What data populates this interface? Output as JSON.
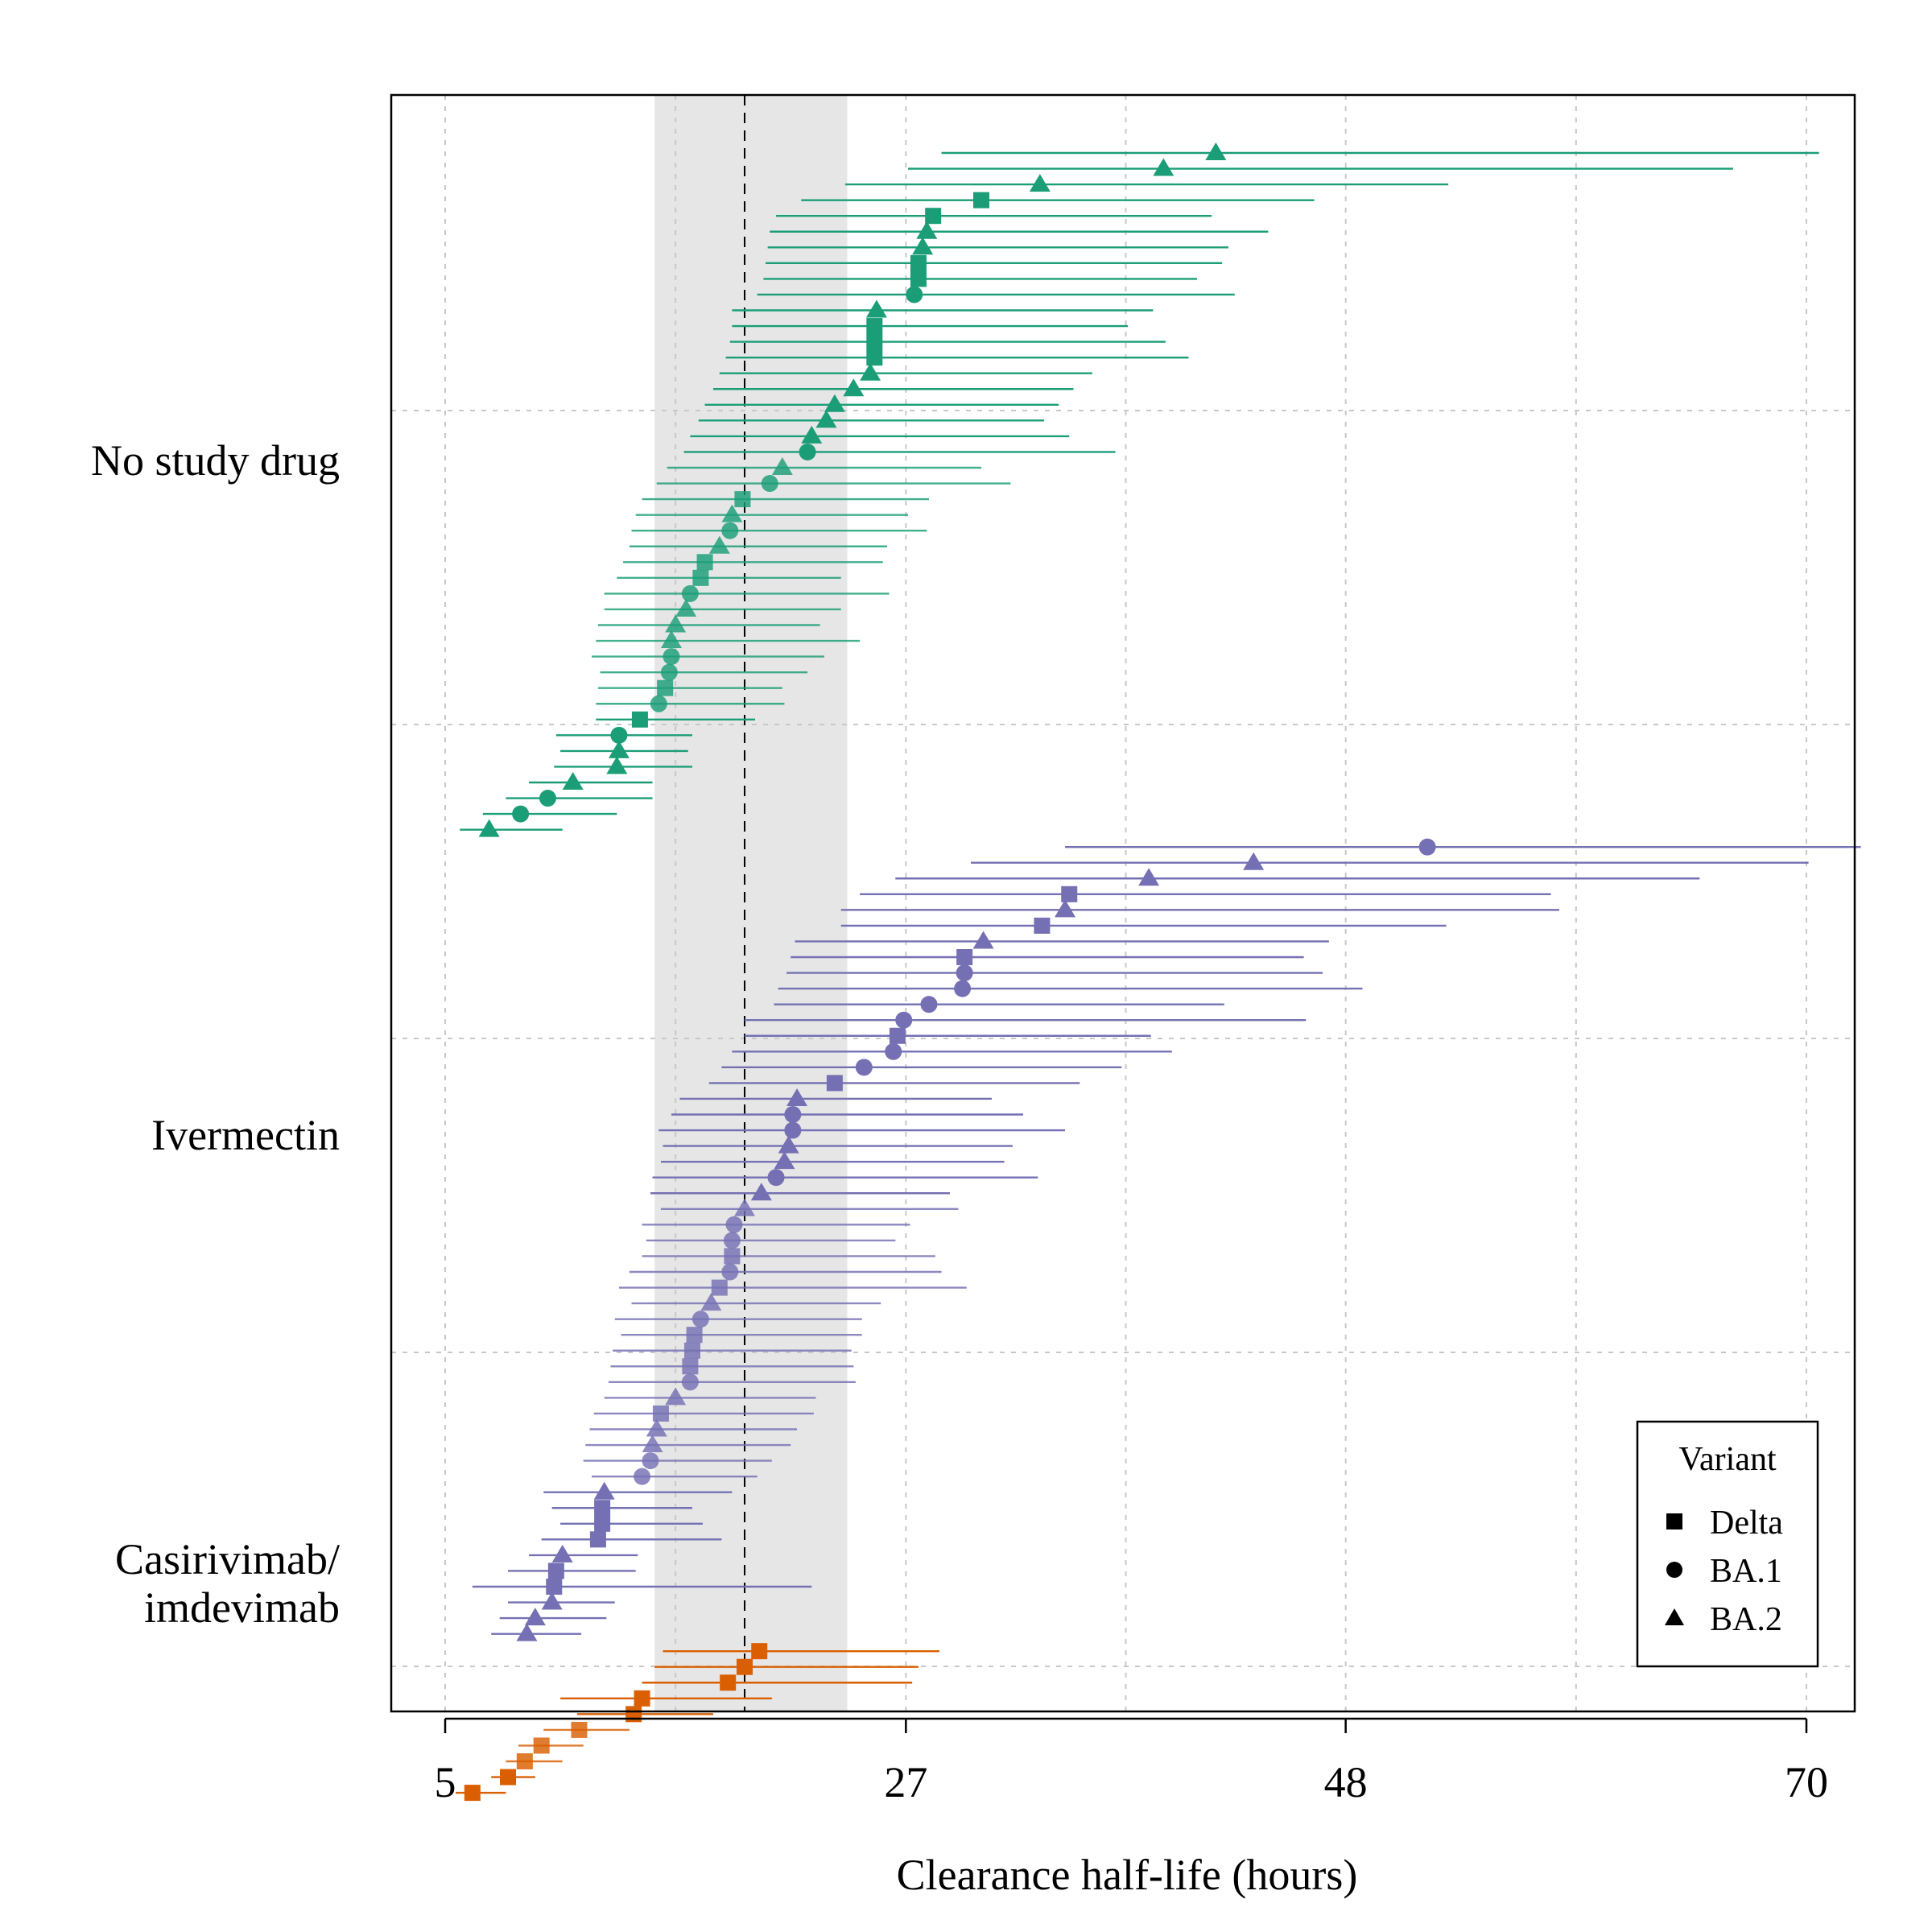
{
  "chart_data": {
    "type": "scatter",
    "subtype": "forest plot of individual estimates with interval bars",
    "xlabel": "Clearance half-life (hours)",
    "x_ticks": [
      5,
      27,
      48,
      70
    ],
    "xlim": [
      2.4,
      72.6
    ],
    "grid": true,
    "reference_line": {
      "x": 19.3,
      "style": "dashed"
    },
    "reference_band": {
      "x_min": 15,
      "x_max": 24.2
    },
    "legend": {
      "title": "Variant",
      "position": "bottom-right",
      "entries": [
        {
          "label": "Delta",
          "shape": "square"
        },
        {
          "label": "BA.1",
          "shape": "circle"
        },
        {
          "label": "BA.2",
          "shape": "triangle"
        }
      ]
    },
    "groups": [
      {
        "label": "No study drug",
        "color": "#1B9E77",
        "points": [
          {
            "v": "BA.2",
            "x": 41.8,
            "lo": 28.7,
            "hi": 70.6
          },
          {
            "v": "BA.2",
            "x": 39.3,
            "lo": 27.1,
            "hi": 66.5
          },
          {
            "v": "BA.2",
            "x": 33.4,
            "lo": 24.1,
            "hi": 52.9
          },
          {
            "v": "Delta",
            "x": 30.6,
            "lo": 22.0,
            "hi": 46.5
          },
          {
            "v": "Delta",
            "x": 28.3,
            "lo": 20.8,
            "hi": 41.6
          },
          {
            "v": "BA.2",
            "x": 28.0,
            "lo": 20.5,
            "hi": 44.3
          },
          {
            "v": "BA.2",
            "x": 27.8,
            "lo": 20.4,
            "hi": 42.4
          },
          {
            "v": "Delta",
            "x": 27.6,
            "lo": 20.3,
            "hi": 42.1
          },
          {
            "v": "Delta",
            "x": 27.6,
            "lo": 20.2,
            "hi": 40.9
          },
          {
            "v": "BA.1",
            "x": 27.4,
            "lo": 19.9,
            "hi": 42.7
          },
          {
            "v": "BA.2",
            "x": 25.6,
            "lo": 18.7,
            "hi": 38.8
          },
          {
            "v": "Delta",
            "x": 25.5,
            "lo": 18.7,
            "hi": 37.6
          },
          {
            "v": "Delta",
            "x": 25.5,
            "lo": 18.6,
            "hi": 39.4
          },
          {
            "v": "Delta",
            "x": 25.5,
            "lo": 18.4,
            "hi": 40.5
          },
          {
            "v": "BA.2",
            "x": 25.3,
            "lo": 18.1,
            "hi": 35.9
          },
          {
            "v": "BA.2",
            "x": 24.5,
            "lo": 17.8,
            "hi": 35.0
          },
          {
            "v": "BA.2",
            "x": 23.6,
            "lo": 17.4,
            "hi": 34.3
          },
          {
            "v": "BA.2",
            "x": 23.2,
            "lo": 17.1,
            "hi": 33.6
          },
          {
            "v": "BA.2",
            "x": 22.5,
            "lo": 16.7,
            "hi": 34.8
          },
          {
            "v": "BA.1",
            "x": 22.3,
            "lo": 16.4,
            "hi": 37.0
          },
          {
            "v": "BA.2",
            "x": 21.1,
            "lo": 15.6,
            "hi": 30.6
          },
          {
            "v": "BA.1",
            "x": 20.5,
            "lo": 15.1,
            "hi": 32.0
          },
          {
            "v": "Delta",
            "x": 19.2,
            "lo": 14.4,
            "hi": 28.1
          },
          {
            "v": "BA.2",
            "x": 18.7,
            "lo": 14.1,
            "hi": 27.1
          },
          {
            "v": "BA.1",
            "x": 18.6,
            "lo": 13.9,
            "hi": 28.0
          },
          {
            "v": "BA.2",
            "x": 18.1,
            "lo": 13.8,
            "hi": 26.1
          },
          {
            "v": "Delta",
            "x": 17.4,
            "lo": 13.5,
            "hi": 25.9
          },
          {
            "v": "Delta",
            "x": 17.2,
            "lo": 13.2,
            "hi": 23.9
          },
          {
            "v": "BA.1",
            "x": 16.7,
            "lo": 12.6,
            "hi": 26.2
          },
          {
            "v": "BA.2",
            "x": 16.5,
            "lo": 12.6,
            "hi": 23.9
          },
          {
            "v": "BA.2",
            "x": 16.0,
            "lo": 12.3,
            "hi": 22.9
          },
          {
            "v": "BA.2",
            "x": 15.8,
            "lo": 12.2,
            "hi": 24.8
          },
          {
            "v": "BA.1",
            "x": 15.8,
            "lo": 12.0,
            "hi": 23.1
          },
          {
            "v": "BA.1",
            "x": 15.7,
            "lo": 12.4,
            "hi": 22.3
          },
          {
            "v": "Delta",
            "x": 15.5,
            "lo": 12.3,
            "hi": 21.1
          },
          {
            "v": "BA.1",
            "x": 15.2,
            "lo": 12.2,
            "hi": 21.2
          },
          {
            "v": "Delta",
            "x": 14.3,
            "lo": 12.2,
            "hi": 19.8
          },
          {
            "v": "BA.1",
            "x": 13.3,
            "lo": 10.3,
            "hi": 16.8
          },
          {
            "v": "BA.2",
            "x": 13.3,
            "lo": 10.5,
            "hi": 16.6
          },
          {
            "v": "BA.2",
            "x": 13.2,
            "lo": 10.2,
            "hi": 16.8
          },
          {
            "v": "BA.2",
            "x": 11.1,
            "lo": 9.0,
            "hi": 14.9
          },
          {
            "v": "BA.1",
            "x": 9.9,
            "lo": 7.9,
            "hi": 14.9
          },
          {
            "v": "BA.1",
            "x": 8.6,
            "lo": 6.8,
            "hi": 13.2
          },
          {
            "v": "BA.2",
            "x": 7.1,
            "lo": 5.7,
            "hi": 10.6
          }
        ]
      },
      {
        "label": "Ivermectin",
        "color": "#7570B3",
        "points": [
          {
            "v": "BA.1",
            "x": 51.9,
            "lo": 34.6,
            "hi": 72.6
          },
          {
            "v": "BA.2",
            "x": 43.6,
            "lo": 30.1,
            "hi": 70.1
          },
          {
            "v": "BA.2",
            "x": 38.6,
            "lo": 26.5,
            "hi": 64.9
          },
          {
            "v": "Delta",
            "x": 34.8,
            "lo": 24.8,
            "hi": 57.8
          },
          {
            "v": "BA.2",
            "x": 34.6,
            "lo": 23.9,
            "hi": 58.2
          },
          {
            "v": "Delta",
            "x": 33.5,
            "lo": 23.9,
            "hi": 52.8
          },
          {
            "v": "BA.2",
            "x": 30.7,
            "lo": 21.7,
            "hi": 47.2
          },
          {
            "v": "Delta",
            "x": 29.8,
            "lo": 21.5,
            "hi": 46.0
          },
          {
            "v": "BA.1",
            "x": 29.8,
            "lo": 21.3,
            "hi": 46.9
          },
          {
            "v": "BA.1",
            "x": 29.7,
            "lo": 20.9,
            "hi": 48.8
          },
          {
            "v": "BA.1",
            "x": 28.1,
            "lo": 20.7,
            "hi": 42.2
          },
          {
            "v": "BA.1",
            "x": 26.9,
            "lo": 19.3,
            "hi": 46.1
          },
          {
            "v": "Delta",
            "x": 26.6,
            "lo": 19.3,
            "hi": 38.7
          },
          {
            "v": "BA.1",
            "x": 26.4,
            "lo": 18.7,
            "hi": 39.7
          },
          {
            "v": "BA.1",
            "x": 25.0,
            "lo": 18.2,
            "hi": 37.3
          },
          {
            "v": "Delta",
            "x": 23.6,
            "lo": 17.6,
            "hi": 35.3
          },
          {
            "v": "BA.2",
            "x": 21.8,
            "lo": 16.2,
            "hi": 31.1
          },
          {
            "v": "BA.1",
            "x": 21.6,
            "lo": 15.8,
            "hi": 32.6
          },
          {
            "v": "BA.1",
            "x": 21.6,
            "lo": 15.2,
            "hi": 34.6
          },
          {
            "v": "BA.2",
            "x": 21.4,
            "lo": 15.4,
            "hi": 32.1
          },
          {
            "v": "BA.2",
            "x": 21.2,
            "lo": 15.3,
            "hi": 31.7
          },
          {
            "v": "BA.1",
            "x": 20.8,
            "lo": 14.9,
            "hi": 33.3
          },
          {
            "v": "BA.2",
            "x": 20.1,
            "lo": 14.8,
            "hi": 29.1
          },
          {
            "v": "BA.2",
            "x": 19.3,
            "lo": 15.3,
            "hi": 29.5
          },
          {
            "v": "BA.1",
            "x": 18.8,
            "lo": 14.4,
            "hi": 27.2
          },
          {
            "v": "BA.1",
            "x": 18.7,
            "lo": 14.6,
            "hi": 26.5
          },
          {
            "v": "Delta",
            "x": 18.7,
            "lo": 14.4,
            "hi": 28.4
          },
          {
            "v": "BA.1",
            "x": 18.6,
            "lo": 13.8,
            "hi": 28.7
          },
          {
            "v": "Delta",
            "x": 18.1,
            "lo": 13.3,
            "hi": 29.9
          },
          {
            "v": "BA.2",
            "x": 17.7,
            "lo": 13.9,
            "hi": 25.8
          },
          {
            "v": "BA.1",
            "x": 17.2,
            "lo": 13.1,
            "hi": 24.9
          },
          {
            "v": "Delta",
            "x": 16.9,
            "lo": 13.4,
            "hi": 24.9
          },
          {
            "v": "Delta",
            "x": 16.8,
            "lo": 13.0,
            "hi": 24.4
          },
          {
            "v": "Delta",
            "x": 16.7,
            "lo": 12.9,
            "hi": 24.5
          },
          {
            "v": "BA.1",
            "x": 16.7,
            "lo": 12.8,
            "hi": 24.6
          },
          {
            "v": "BA.2",
            "x": 16.0,
            "lo": 12.6,
            "hi": 22.7
          },
          {
            "v": "Delta",
            "x": 15.3,
            "lo": 12.1,
            "hi": 22.6
          },
          {
            "v": "BA.2",
            "x": 15.1,
            "lo": 11.9,
            "hi": 21.8
          },
          {
            "v": "BA.2",
            "x": 14.9,
            "lo": 11.7,
            "hi": 21.5
          },
          {
            "v": "BA.1",
            "x": 14.8,
            "lo": 11.6,
            "hi": 20.6
          },
          {
            "v": "BA.1",
            "x": 14.4,
            "lo": 12.0,
            "hi": 19.9
          },
          {
            "v": "BA.2",
            "x": 12.6,
            "lo": 9.7,
            "hi": 18.7
          },
          {
            "v": "Delta",
            "x": 12.5,
            "lo": 10.1,
            "hi": 16.8
          },
          {
            "v": "Delta",
            "x": 12.5,
            "lo": 10.5,
            "hi": 17.3
          },
          {
            "v": "Delta",
            "x": 12.3,
            "lo": 9.6,
            "hi": 18.2
          },
          {
            "v": "BA.2",
            "x": 10.6,
            "lo": 9.0,
            "hi": 14.2
          },
          {
            "v": "Delta",
            "x": 10.3,
            "lo": 8.0,
            "hi": 14.1
          },
          {
            "v": "Delta",
            "x": 10.2,
            "lo": 6.3,
            "hi": 22.5
          },
          {
            "v": "BA.2",
            "x": 10.1,
            "lo": 8.0,
            "hi": 13.1
          },
          {
            "v": "BA.2",
            "x": 9.3,
            "lo": 7.6,
            "hi": 12.7
          },
          {
            "v": "BA.2",
            "x": 8.9,
            "lo": 7.2,
            "hi": 11.5
          }
        ]
      },
      {
        "label": "Casirivimab/\nimdevimab",
        "color": "#D95F02",
        "points": [
          {
            "v": "Delta",
            "x": 20.0,
            "lo": 15.4,
            "hi": 28.6
          },
          {
            "v": "Delta",
            "x": 19.3,
            "lo": 15.0,
            "hi": 27.6
          },
          {
            "v": "Delta",
            "x": 18.5,
            "lo": 14.4,
            "hi": 27.3
          },
          {
            "v": "Delta",
            "x": 14.4,
            "lo": 10.5,
            "hi": 20.6
          },
          {
            "v": "Delta",
            "x": 14.0,
            "lo": 11.3,
            "hi": 17.8
          },
          {
            "v": "Delta",
            "x": 11.4,
            "lo": 9.7,
            "hi": 13.8
          },
          {
            "v": "Delta",
            "x": 9.6,
            "lo": 8.5,
            "hi": 11.6
          },
          {
            "v": "Delta",
            "x": 8.8,
            "lo": 7.9,
            "hi": 10.6
          },
          {
            "v": "Delta",
            "x": 8.0,
            "lo": 7.2,
            "hi": 9.3
          },
          {
            "v": "Delta",
            "x": 6.3,
            "lo": 5.5,
            "hi": 7.9
          }
        ]
      }
    ]
  }
}
